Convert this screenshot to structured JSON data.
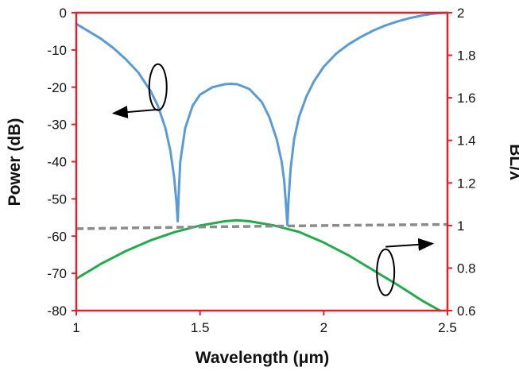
{
  "chart_data": {
    "type": "line",
    "xlabel": "Wavelength (μm)",
    "ylabel_left": "Power (dB)",
    "ylabel_right": "BL/λ",
    "x_range": [
      1,
      2.5
    ],
    "x_ticks": [
      "1",
      "1.5",
      "2",
      "2.5"
    ],
    "y_left_range": [
      -80,
      0
    ],
    "y_left_ticks": [
      "0",
      "-10",
      "-20",
      "-30",
      "-40",
      "-50",
      "-60",
      "-70",
      "-80"
    ],
    "y_right_range": [
      0.6,
      2
    ],
    "y_right_ticks": [
      "2",
      "1.8",
      "1.6",
      "1.4",
      "1.2",
      "1",
      "0.8",
      "0.6"
    ],
    "grid": false,
    "frame_color": "#e0202a",
    "series": [
      {
        "axis": "left",
        "color": "#5b9bd5",
        "style": "solid",
        "x": [
          1.0,
          1.05,
          1.1,
          1.15,
          1.2,
          1.25,
          1.3,
          1.33,
          1.36,
          1.38,
          1.395,
          1.405,
          1.41,
          1.415,
          1.42,
          1.44,
          1.47,
          1.5,
          1.55,
          1.6,
          1.625,
          1.65,
          1.7,
          1.75,
          1.78,
          1.81,
          1.83,
          1.84,
          1.848,
          1.853,
          1.858,
          1.866,
          1.88,
          1.9,
          1.93,
          1.96,
          2.0,
          2.05,
          2.1,
          2.15,
          2.2,
          2.25,
          2.3,
          2.35,
          2.4,
          2.45,
          2.5
        ],
        "y": [
          -3,
          -5,
          -7,
          -9.5,
          -12.5,
          -16,
          -21,
          -25,
          -31,
          -37,
          -44,
          -51,
          -56,
          -47,
          -40,
          -31,
          -25,
          -22,
          -20,
          -19.2,
          -19.1,
          -19.2,
          -20.5,
          -24,
          -28,
          -34,
          -40,
          -45,
          -52,
          -57,
          -50,
          -42,
          -34,
          -28,
          -22.5,
          -18.5,
          -14.5,
          -11,
          -8.5,
          -6.5,
          -4.8,
          -3.4,
          -2.3,
          -1.4,
          -0.7,
          -0.2,
          0
        ]
      },
      {
        "axis": "right",
        "color": "#22aa4c",
        "style": "solid",
        "x": [
          1.0,
          1.1,
          1.2,
          1.3,
          1.4,
          1.5,
          1.6,
          1.65,
          1.7,
          1.8,
          1.9,
          2.0,
          2.1,
          2.2,
          2.3,
          2.4,
          2.47
        ],
        "y": [
          0.75,
          0.82,
          0.88,
          0.93,
          0.97,
          1.0,
          1.02,
          1.025,
          1.02,
          1.0,
          0.97,
          0.92,
          0.86,
          0.79,
          0.72,
          0.645,
          0.6
        ]
      },
      {
        "axis": "right",
        "color": "#8c8c8c",
        "style": "dashed",
        "x": [
          1.0,
          1.5,
          2.0,
          2.5
        ],
        "y": [
          0.985,
          0.993,
          1.0,
          1.005
        ]
      }
    ],
    "annotations": [
      {
        "kind": "ellipse-arrow",
        "target_axis": "left",
        "ellipse_at": [
          1.33,
          -20
        ],
        "arrow_from": [
          1.33,
          -26
        ],
        "arrow_to": [
          1.15,
          -27
        ]
      },
      {
        "kind": "ellipse-arrow",
        "target_axis": "right",
        "ellipse_at": [
          2.25,
          0.78
        ],
        "arrow_from": [
          2.25,
          0.9
        ],
        "arrow_to": [
          2.44,
          0.915
        ]
      }
    ]
  }
}
